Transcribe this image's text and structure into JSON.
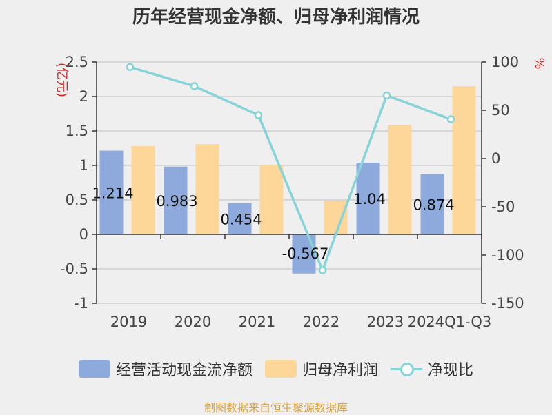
{
  "chart_data": {
    "type": "bar",
    "title": "历年经营现金净额、归母净利润情况",
    "categories": [
      "2019",
      "2020",
      "2021",
      "2022",
      "2023",
      "2024Q1-Q3"
    ],
    "series": [
      {
        "name": "经营活动现金流净额",
        "type": "bar",
        "axis": "left",
        "color": "#8eaadc",
        "values": [
          1.214,
          0.983,
          0.454,
          -0.567,
          1.04,
          0.874
        ],
        "labels": [
          "1.214",
          "0.983",
          "0.454",
          "-0.567",
          "1.04",
          "0.874"
        ]
      },
      {
        "name": "归母净利润",
        "type": "bar",
        "axis": "left",
        "color": "#fdd79a",
        "values": [
          1.28,
          1.31,
          1.01,
          0.49,
          1.59,
          2.15
        ]
      },
      {
        "name": "净现比",
        "type": "line",
        "axis": "right",
        "color": "#86d4d8",
        "values": [
          94.8,
          75.0,
          45.0,
          -115.7,
          65.4,
          40.7
        ]
      }
    ],
    "y_left": {
      "label": "(亿元)",
      "min": -1,
      "max": 2.5,
      "ticks": [
        "2.5",
        "2",
        "1.5",
        "1",
        "0.5",
        "0",
        "-0.5",
        "-1"
      ],
      "tick_values": [
        2.5,
        2,
        1.5,
        1,
        0.5,
        0,
        -0.5,
        -1
      ]
    },
    "y_right": {
      "label": "%",
      "min": -150,
      "max": 100,
      "ticks": [
        "100",
        "50",
        "0",
        "-50",
        "-100",
        "-150"
      ],
      "tick_values": [
        100,
        50,
        0,
        -50,
        -100,
        -150
      ]
    },
    "grid": true,
    "legend_position": "bottom"
  },
  "source_text": "制图数据来自恒生聚源数据库"
}
